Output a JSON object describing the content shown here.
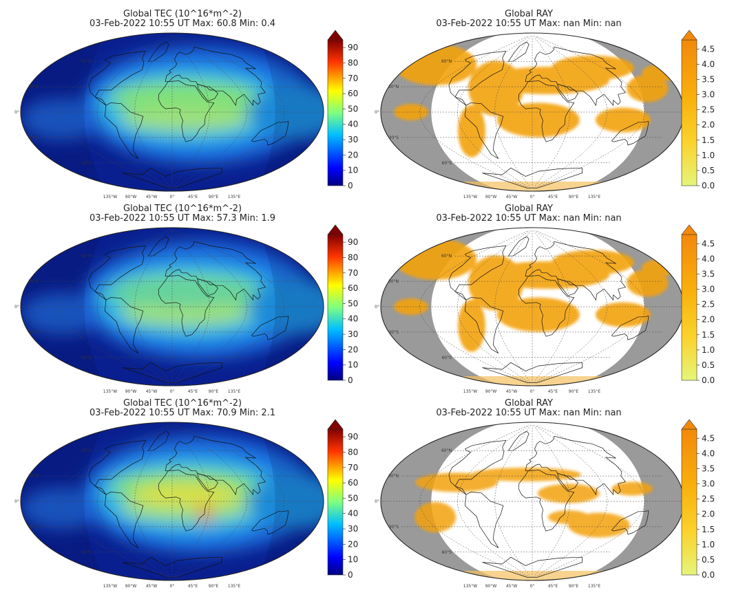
{
  "figure": {
    "colors": {
      "ocean_dark": "#0a1f8f",
      "night_shade": "#9a9a9a",
      "ray_fill": "#f3a20c",
      "coast": "#111111",
      "grid": "#444444"
    },
    "tec_colorbar_ticks": [
      "0",
      "10",
      "20",
      "30",
      "40",
      "50",
      "60",
      "70",
      "80",
      "90"
    ],
    "ray_colorbar_ticks": [
      "0.0",
      "0.5",
      "1.0",
      "1.5",
      "2.0",
      "2.5",
      "3.0",
      "3.5",
      "4.0",
      "4.5"
    ],
    "lat_labels": [
      "60°N",
      "30°N",
      "0°",
      "30°S",
      "60°S"
    ],
    "lon_labels": [
      "135°W",
      "90°W",
      "45°W",
      "0°",
      "45°E",
      "90°E",
      "135°E"
    ]
  },
  "chart_data": [
    {
      "type": "heatmap",
      "panel": "tec-1",
      "title": "Global TEC (10^16*m^-2)",
      "subtitle": "03-Feb-2022 10:55 UT  Max: 60.8 Min: 0.4",
      "colorbar": {
        "min": 0,
        "max": 95,
        "ticks": [
          0,
          10,
          20,
          30,
          40,
          50,
          60,
          70,
          80,
          90
        ],
        "colormap": "jet",
        "extend": "max"
      },
      "max": 60.8,
      "min": 0.4
    },
    {
      "type": "heatmap",
      "panel": "ray-1",
      "title": "Global RAY",
      "subtitle": "03-Feb-2022 10:55 UT  Max: nan Min: nan",
      "colorbar": {
        "min": 0.0,
        "max": 4.8,
        "ticks": [
          0.0,
          0.5,
          1.0,
          1.5,
          2.0,
          2.5,
          3.0,
          3.5,
          4.0,
          4.5
        ],
        "colormap": "Wistia",
        "extend": "max"
      },
      "max": "nan",
      "min": "nan"
    },
    {
      "type": "heatmap",
      "panel": "tec-2",
      "title": "Global TEC (10^16*m^-2)",
      "subtitle": "03-Feb-2022 10:55 UT  Max: 57.3 Min: 1.9",
      "colorbar": {
        "min": 0,
        "max": 95,
        "ticks": [
          0,
          10,
          20,
          30,
          40,
          50,
          60,
          70,
          80,
          90
        ],
        "colormap": "jet",
        "extend": "max"
      },
      "max": 57.3,
      "min": 1.9
    },
    {
      "type": "heatmap",
      "panel": "ray-2",
      "title": "Global RAY",
      "subtitle": "03-Feb-2022 10:55 UT  Max: nan Min: nan",
      "colorbar": {
        "min": 0.0,
        "max": 4.8,
        "ticks": [
          0.0,
          0.5,
          1.0,
          1.5,
          2.0,
          2.5,
          3.0,
          3.5,
          4.0,
          4.5
        ],
        "colormap": "Wistia",
        "extend": "max"
      },
      "max": "nan",
      "min": "nan"
    },
    {
      "type": "heatmap",
      "panel": "tec-3",
      "title": "Global TEC (10^16*m^-2)",
      "subtitle": "03-Feb-2022 10:55 UT  Max: 70.9 Min: 2.1",
      "colorbar": {
        "min": 0,
        "max": 95,
        "ticks": [
          0,
          10,
          20,
          30,
          40,
          50,
          60,
          70,
          80,
          90
        ],
        "colormap": "jet",
        "extend": "max"
      },
      "max": 70.9,
      "min": 2.1
    },
    {
      "type": "heatmap",
      "panel": "ray-3",
      "title": "Global RAY",
      "subtitle": "03-Feb-2022 10:55 UT  Max: nan Min: nan",
      "colorbar": {
        "min": 0.0,
        "max": 4.8,
        "ticks": [
          0.0,
          0.5,
          1.0,
          1.5,
          2.0,
          2.5,
          3.0,
          3.5,
          4.0,
          4.5
        ],
        "colormap": "Wistia",
        "extend": "max"
      },
      "max": "nan",
      "min": "nan"
    }
  ]
}
